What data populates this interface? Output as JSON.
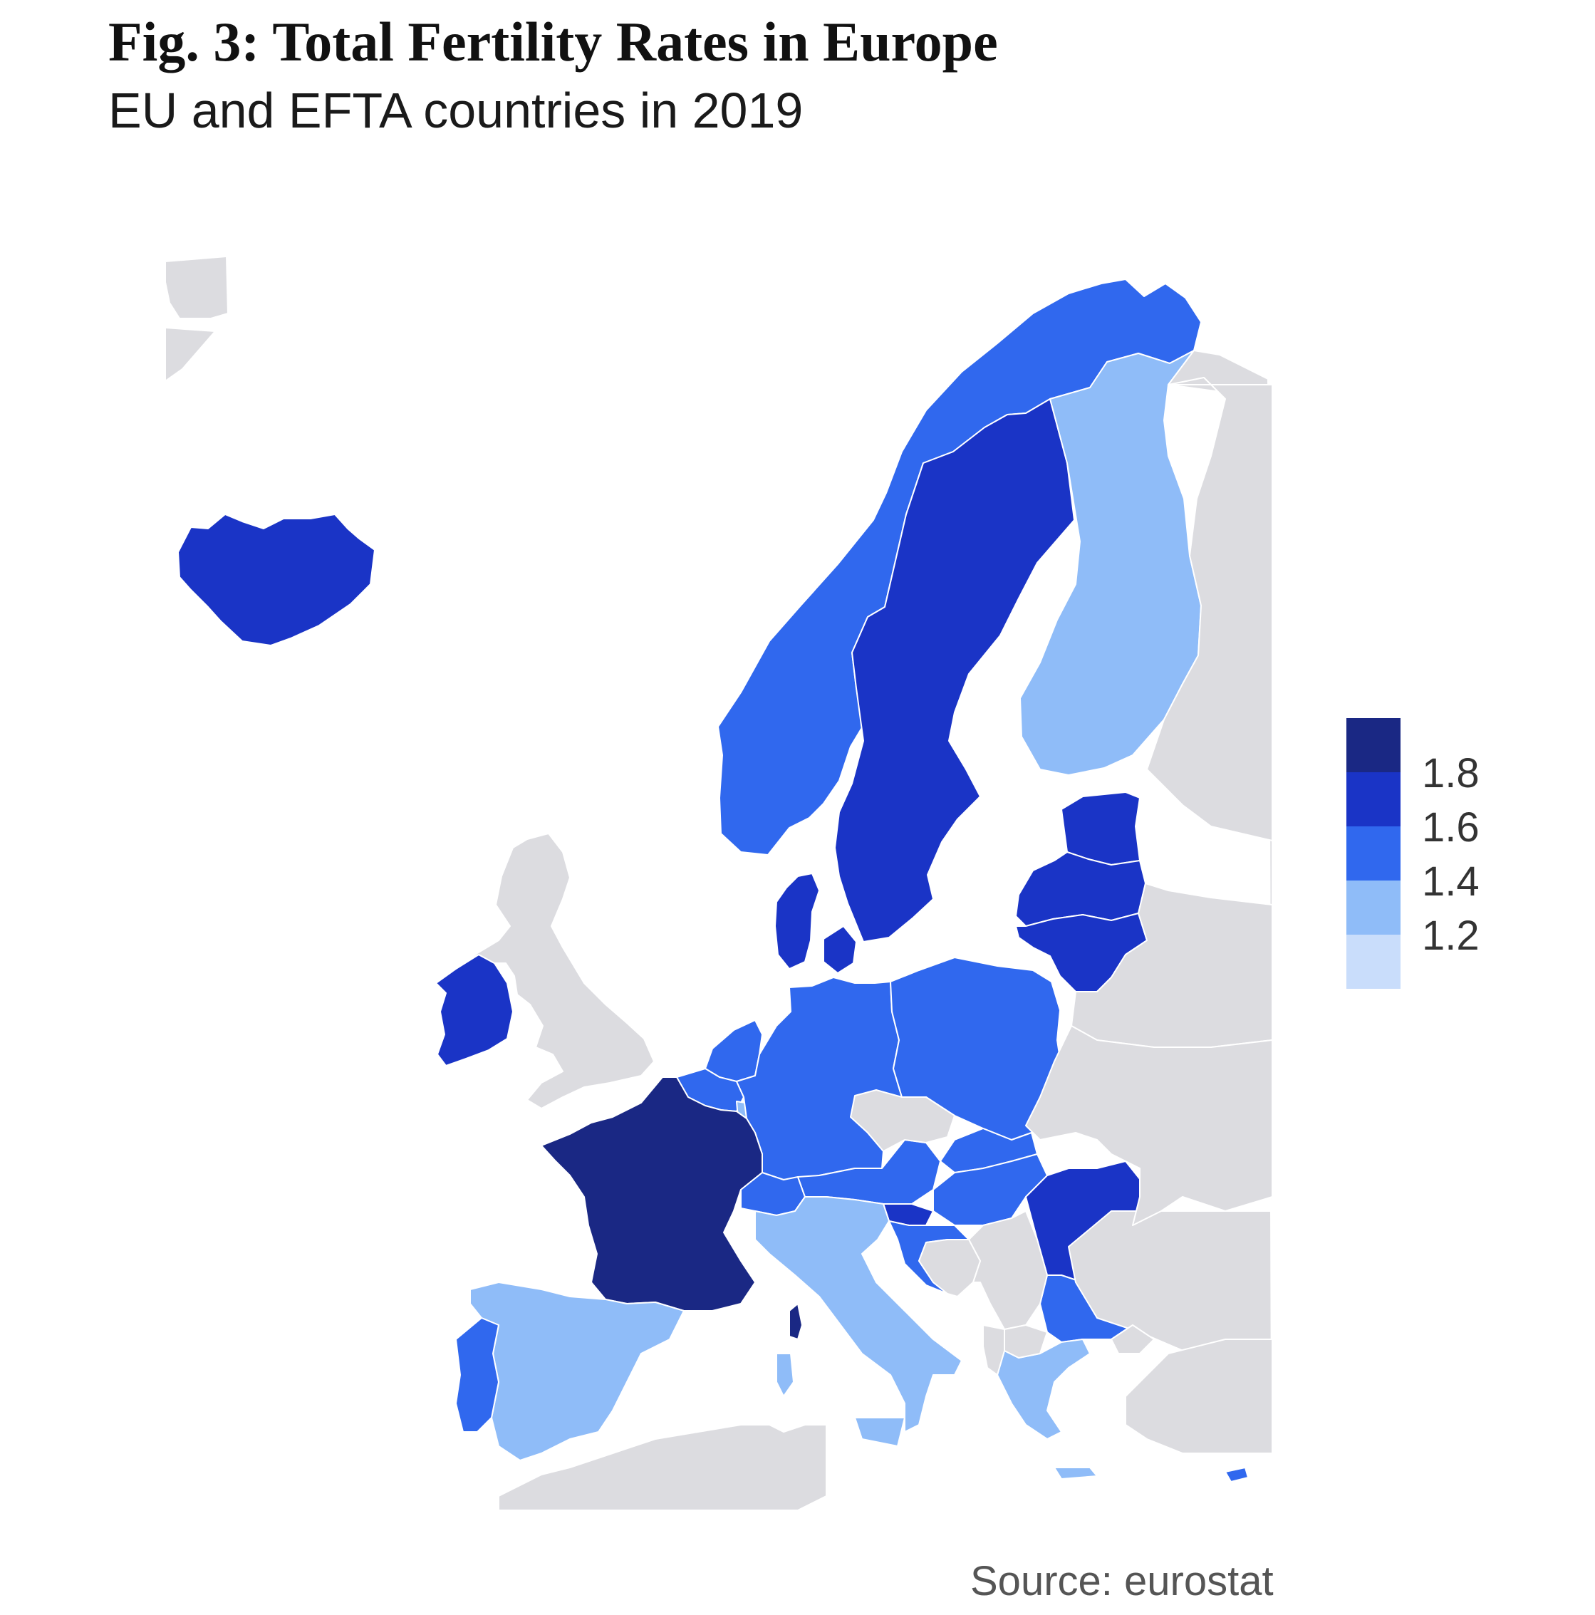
{
  "title": "Fig. 3: Total Fertility Rates in Europe",
  "subtitle": "EU and EFTA countries in 2019",
  "source": "Source: eurostat",
  "colors": {
    "no_data": "#dcdce0",
    "border": "#ffffff",
    "classes": [
      "#c9ddfb",
      "#8fbcf8",
      "#3068ee",
      "#1a34c6",
      "#1a2884"
    ]
  },
  "legend": {
    "labels": [
      "1.8",
      "1.6",
      "1.4",
      "1.2"
    ]
  },
  "chart_data": {
    "type": "choropleth",
    "region": "Europe",
    "legend_placement": "right",
    "class_breaks": [
      1.2,
      1.4,
      1.6,
      1.8
    ],
    "countries": [
      {
        "name": "Iceland",
        "class": 3
      },
      {
        "name": "Norway",
        "class": 2
      },
      {
        "name": "Sweden",
        "class": 3
      },
      {
        "name": "Finland",
        "class": 1
      },
      {
        "name": "Estonia",
        "class": 3
      },
      {
        "name": "Latvia",
        "class": 3
      },
      {
        "name": "Lithuania",
        "class": 3
      },
      {
        "name": "Denmark",
        "class": 3
      },
      {
        "name": "Ireland",
        "class": 3
      },
      {
        "name": "Netherlands",
        "class": 2
      },
      {
        "name": "Belgium",
        "class": 2
      },
      {
        "name": "Luxembourg",
        "class": 1
      },
      {
        "name": "Germany",
        "class": 2
      },
      {
        "name": "Poland",
        "class": 2
      },
      {
        "name": "France",
        "class": 4
      },
      {
        "name": "Switzerland",
        "class": 2
      },
      {
        "name": "Austria",
        "class": 2
      },
      {
        "name": "Slovakia",
        "class": 2
      },
      {
        "name": "Hungary",
        "class": 2
      },
      {
        "name": "Slovenia",
        "class": 3
      },
      {
        "name": "Croatia",
        "class": 2
      },
      {
        "name": "Romania",
        "class": 3
      },
      {
        "name": "Bulgaria",
        "class": 2
      },
      {
        "name": "Spain",
        "class": 1
      },
      {
        "name": "Portugal",
        "class": 2
      },
      {
        "name": "Italy",
        "class": 1
      },
      {
        "name": "Greece",
        "class": 1
      },
      {
        "name": "Cyprus",
        "class": 2
      },
      {
        "name": "United Kingdom",
        "class": null
      },
      {
        "name": "Czechia",
        "class": null
      },
      {
        "name": "Russia",
        "class": null
      },
      {
        "name": "Belarus",
        "class": null
      },
      {
        "name": "Ukraine",
        "class": null
      },
      {
        "name": "Turkey",
        "class": null
      },
      {
        "name": "Serbia",
        "class": null
      },
      {
        "name": "Bosnia and Herzegovina",
        "class": null
      },
      {
        "name": "Albania",
        "class": null
      },
      {
        "name": "North Macedonia",
        "class": null
      },
      {
        "name": "North Africa",
        "class": null
      },
      {
        "name": "Greenland",
        "class": null
      }
    ]
  }
}
